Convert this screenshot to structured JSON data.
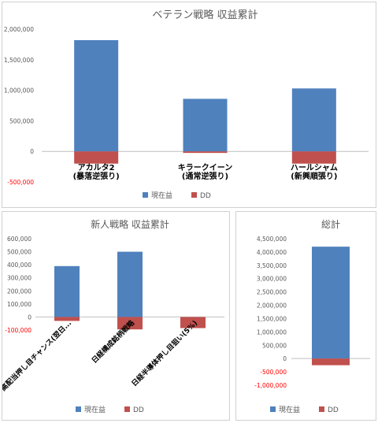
{
  "chart_data": [
    {
      "type": "bar",
      "title": "ベテラン戦略 収益累計",
      "categories": [
        [
          "アカルタ2",
          "(暴落逆張り)"
        ],
        [
          "キラークイーン",
          "(通常逆張り)"
        ],
        [
          "ハールシャム",
          "(新興順張り)"
        ]
      ],
      "series": [
        {
          "name": "現在益",
          "values": [
            1820000,
            860000,
            1030000
          ],
          "color": "#4f81bd"
        },
        {
          "name": "DD",
          "values": [
            -200000,
            -25000,
            -200000
          ],
          "color": "#c0504d"
        }
      ],
      "ylim": [
        -500000,
        2000000
      ],
      "yticks": [
        -500000,
        0,
        500000,
        1000000,
        1500000,
        2000000
      ],
      "ytick_labels": [
        "-500,000",
        "0",
        "500,000",
        "1,000,000",
        "1,500,000",
        "2,000,000"
      ],
      "grid": false,
      "legend": "bottom"
    },
    {
      "type": "bar",
      "title": "新人戦略 収益累計",
      "categories": [
        [
          "高配当押し目チャンス(翌日..."
        ],
        [
          "日経構成銘柄戦略"
        ],
        [
          "日経半導体押し目狙い(5%)"
        ]
      ],
      "series": [
        {
          "name": "現在益",
          "values": [
            390000,
            500000,
            0
          ],
          "color": "#4f81bd"
        },
        {
          "name": "DD",
          "values": [
            -30000,
            -95000,
            -85000
          ],
          "color": "#c0504d"
        }
      ],
      "ylim": [
        -100000,
        600000
      ],
      "yticks": [
        -100000,
        0,
        100000,
        200000,
        300000,
        400000,
        500000,
        600000
      ],
      "ytick_labels": [
        "-100,000",
        "0",
        "100,000",
        "200,000",
        "300,000",
        "400,000",
        "500,000",
        "600,000"
      ],
      "grid": false,
      "legend": "bottom"
    },
    {
      "type": "bar",
      "title": "総計",
      "categories": [
        [
          ""
        ]
      ],
      "series": [
        {
          "name": "現在益",
          "values": [
            4200000
          ],
          "color": "#4f81bd"
        },
        {
          "name": "DD",
          "values": [
            -250000
          ],
          "color": "#c0504d"
        }
      ],
      "ylim": [
        -1000000,
        4500000
      ],
      "yticks": [
        -1000000,
        -500000,
        0,
        500000,
        1000000,
        1500000,
        2000000,
        2500000,
        3000000,
        3500000,
        4000000,
        4500000
      ],
      "ytick_labels": [
        "-1,000,000",
        "-500,000",
        "0",
        "500,000",
        "1,000,000",
        "1,500,000",
        "2,000,000",
        "2,500,000",
        "3,000,000",
        "3,500,000",
        "4,000,000",
        "4,500,000"
      ],
      "grid": false,
      "legend": "bottom"
    }
  ]
}
